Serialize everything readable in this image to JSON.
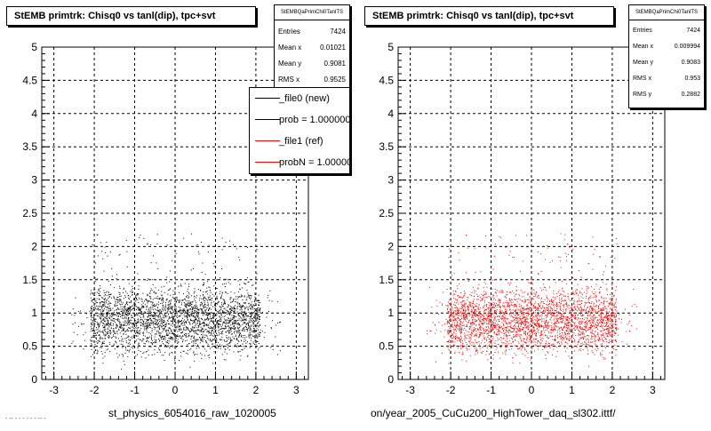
{
  "chart_data": [
    {
      "type": "scatter",
      "title": "StEMB primtrk: Chisq0 vs tanl(dip), tpc+svt",
      "xlabel": "st_physics_6054016_raw_1020005",
      "ylabel": "",
      "xlim": [
        -3.3,
        3.3
      ],
      "ylim": [
        0,
        5
      ],
      "x_ticks": [
        "-3",
        "-2",
        "-1",
        "0",
        "1",
        "2",
        "3"
      ],
      "y_ticks": [
        "0",
        "0.5",
        "1",
        "1.5",
        "2",
        "2.5",
        "3",
        "3.5",
        "4",
        "4.5",
        "5"
      ],
      "grid": true,
      "point_color": "#000000",
      "seed": 11,
      "stats": {
        "header": "StEMBQaPrimChi0TanlTS",
        "rows": [
          {
            "label": "Entries",
            "value": "7424"
          },
          {
            "label": "Mean x",
            "value": "0.01021"
          },
          {
            "label": "Mean y",
            "value": "0.9081"
          },
          {
            "label": "RMS x",
            "value": "0.9525"
          }
        ]
      },
      "legend": {
        "placement": "top-right",
        "entries": [
          {
            "label": "_file0 (new)",
            "color": "#000000"
          },
          {
            "label": "prob = 1.000000",
            "color": "#000000"
          },
          {
            "label": "_file1 (ref)",
            "color": "#ff0000"
          },
          {
            "label": "probN = 1.000000",
            "color": "#ff0000"
          }
        ]
      }
    },
    {
      "type": "scatter",
      "title": "StEMB primtrk: Chisq0 vs tanl(dip), tpc+svt",
      "xlabel": "on/year_2005_CuCu200_HighTower_daq_sl302.ittf/",
      "ylabel": "",
      "xlim": [
        -3.3,
        3.3
      ],
      "ylim": [
        0,
        5
      ],
      "x_ticks": [
        "-3",
        "-2",
        "-1",
        "0",
        "1",
        "2",
        "3"
      ],
      "y_ticks": [
        "0",
        "0.5",
        "1",
        "1.5",
        "2",
        "2.5",
        "3",
        "3.5",
        "4",
        "4.5",
        "5"
      ],
      "grid": true,
      "point_color": "#ff0000",
      "seed": 23,
      "stats": {
        "header": "StEMBQaPrimChi0TanlTS",
        "rows": [
          {
            "label": "Entries",
            "value": "7424"
          },
          {
            "label": "Mean x",
            "value": "0.009994"
          },
          {
            "label": "Mean y",
            "value": "0.9083"
          },
          {
            "label": "RMS x",
            "value": "0.953"
          },
          {
            "label": "RMS y",
            "value": "0.2882"
          }
        ]
      }
    }
  ],
  "footer": "- -- - - - - - - -- -"
}
